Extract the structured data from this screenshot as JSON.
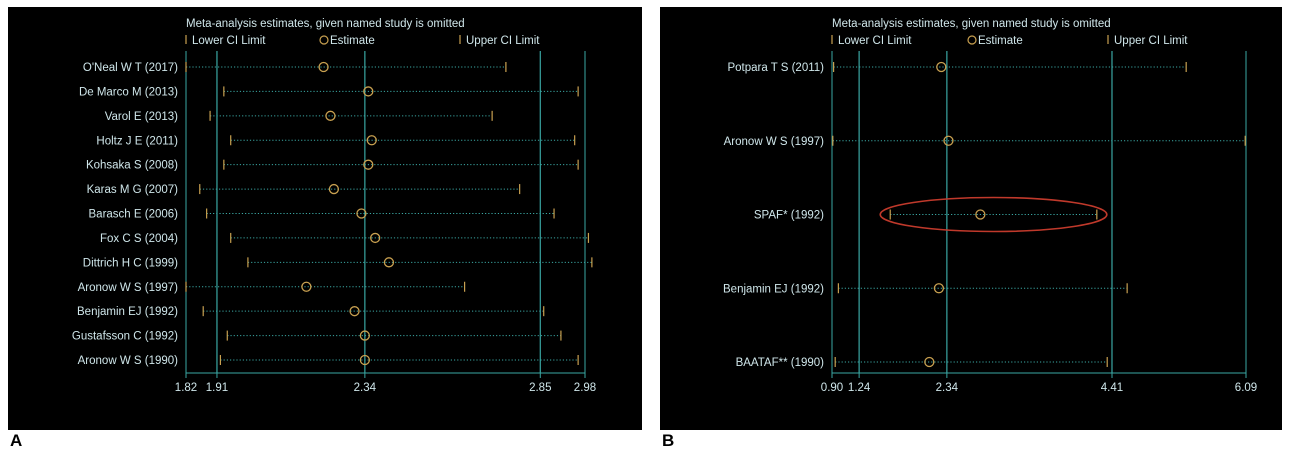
{
  "colors": {
    "background": "#000000",
    "text": "#cfe6ea",
    "axis": "#3aa7a3",
    "ci_marker": "#c8a050",
    "estimate": "#c8a050",
    "dotted_line": "#3aa7a3",
    "highlight_ellipse": "#c0392b"
  },
  "panels": [
    {
      "id": "A",
      "letter": "A",
      "title": "Meta-analysis estimates, given named study is omitted",
      "legend": {
        "lower": "Lower CI Limit",
        "estimate": "Estimate",
        "upper": "Upper CI Limit"
      },
      "xaxis_ticks": [
        1.82,
        1.91,
        2.34,
        2.85,
        2.98
      ],
      "tick_labels": [
        "1.82",
        "1.91",
        "2.34",
        "2.85",
        "2.98"
      ],
      "ref_lines": [
        1.91,
        2.34,
        2.85
      ]
    },
    {
      "id": "B",
      "letter": "B",
      "title": "Meta-analysis estimates, given named study is omitted",
      "legend": {
        "lower": "Lower CI Limit",
        "estimate": "Estimate",
        "upper": "Upper CI Limit"
      },
      "xaxis_ticks": [
        0.9,
        1.24,
        2.34,
        4.41,
        6.09
      ],
      "tick_labels": [
        "0.90",
        "1.24",
        "2.34",
        "4.41",
        "6.09"
      ],
      "ref_lines": [
        1.24,
        2.34,
        4.41
      ],
      "highlighted_study": "SPAF* (1992)"
    }
  ],
  "chart_data": [
    {
      "type": "forest",
      "panel": "A",
      "title": "Meta-analysis estimates, given named study is omitted",
      "xlim": [
        1.82,
        2.98
      ],
      "studies": [
        {
          "label": "O'Neal W T (2017)",
          "lower": 1.82,
          "estimate": 2.22,
          "upper": 2.75
        },
        {
          "label": "De Marco M (2013)",
          "lower": 1.93,
          "estimate": 2.35,
          "upper": 2.96
        },
        {
          "label": "Varol E (2013)",
          "lower": 1.89,
          "estimate": 2.24,
          "upper": 2.71
        },
        {
          "label": "Holtz J E (2011)",
          "lower": 1.95,
          "estimate": 2.36,
          "upper": 2.95
        },
        {
          "label": "Kohsaka S (2008)",
          "lower": 1.93,
          "estimate": 2.35,
          "upper": 2.96
        },
        {
          "label": "Karas M G (2007)",
          "lower": 1.86,
          "estimate": 2.25,
          "upper": 2.79
        },
        {
          "label": "Barasch E (2006)",
          "lower": 1.88,
          "estimate": 2.33,
          "upper": 2.89
        },
        {
          "label": "Fox C S (2004)",
          "lower": 1.95,
          "estimate": 2.37,
          "upper": 2.99
        },
        {
          "label": "Dittrich H C (1999)",
          "lower": 2.0,
          "estimate": 2.41,
          "upper": 3.0
        },
        {
          "label": "Aronow W S (1997)",
          "lower": 1.82,
          "estimate": 2.17,
          "upper": 2.63
        },
        {
          "label": "Benjamin EJ (1992)",
          "lower": 1.87,
          "estimate": 2.31,
          "upper": 2.86
        },
        {
          "label": "Gustafsson C (1992)",
          "lower": 1.94,
          "estimate": 2.34,
          "upper": 2.91
        },
        {
          "label": "Aronow W S (1990)",
          "lower": 1.92,
          "estimate": 2.34,
          "upper": 2.96
        }
      ]
    },
    {
      "type": "forest",
      "panel": "B",
      "title": "Meta-analysis estimates, given named study is omitted",
      "xlim": [
        0.9,
        6.09
      ],
      "studies": [
        {
          "label": "Potpara T S (2011)",
          "lower": 0.92,
          "estimate": 2.27,
          "upper": 5.34
        },
        {
          "label": "Aronow W S (1997)",
          "lower": 0.91,
          "estimate": 2.36,
          "upper": 6.08
        },
        {
          "label": "SPAF* (1992)",
          "lower": 1.63,
          "estimate": 2.76,
          "upper": 4.22
        },
        {
          "label": "Benjamin EJ (1992)",
          "lower": 0.98,
          "estimate": 2.24,
          "upper": 4.6
        },
        {
          "label": "BAATAF** (1990)",
          "lower": 0.94,
          "estimate": 2.12,
          "upper": 4.35
        }
      ]
    }
  ]
}
